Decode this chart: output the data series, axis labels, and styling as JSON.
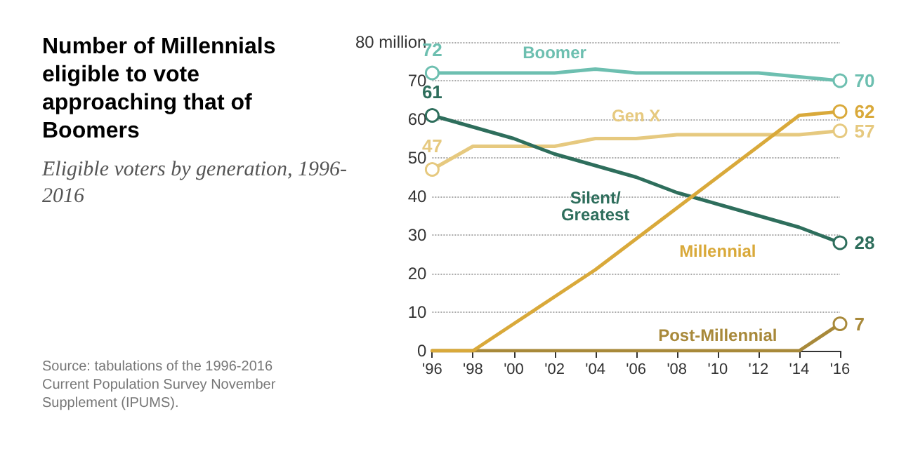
{
  "chart_data": {
    "type": "line",
    "title": "Number of Millennials eligible to vote approaching that of Boomers",
    "subtitle": "Eligible voters by generation, 1996-2016",
    "annotations": [
      "Source: tabulations of the 1996-2016 Current Population Survey November Supplement (IPUMS)."
    ],
    "categories": [
      "'96",
      "'98",
      "'00",
      "'02",
      "'04",
      "'06",
      "'08",
      "'10",
      "'12",
      "'14",
      "'16"
    ],
    "series": [
      {
        "name": "Boomer",
        "color": "#6dbfb0",
        "values": [
          72,
          72,
          72,
          72,
          73,
          72,
          72,
          72,
          72,
          71,
          70
        ],
        "value_labels": [
          "72",
          null,
          null,
          null,
          null,
          null,
          null,
          null,
          null,
          null,
          "70"
        ]
      },
      {
        "name": "Gen X",
        "color": "#e6c97f",
        "values": [
          47,
          53,
          53,
          53,
          55,
          55,
          56,
          56,
          56,
          56,
          57
        ],
        "value_labels": [
          "47",
          null,
          null,
          null,
          null,
          null,
          null,
          null,
          null,
          null,
          "57"
        ]
      },
      {
        "name": "Silent/Greatest",
        "color": "#2e6e5c",
        "values": [
          61,
          58,
          55,
          51,
          48,
          45,
          41,
          38,
          35,
          32,
          28
        ],
        "value_labels": [
          "61",
          null,
          null,
          null,
          null,
          null,
          null,
          null,
          null,
          null,
          "28"
        ]
      },
      {
        "name": "Post-Millennial",
        "color": "#a8893a",
        "values": [
          0,
          0,
          0,
          0,
          0,
          0,
          0,
          0,
          0,
          0,
          7
        ],
        "value_labels": [
          null,
          null,
          null,
          null,
          null,
          null,
          null,
          null,
          null,
          null,
          "7"
        ]
      },
      {
        "name": "Millennial",
        "color": "#d9a93a",
        "values": [
          0,
          0,
          7,
          14,
          21,
          29,
          37,
          45,
          53,
          61,
          62
        ],
        "value_labels": [
          null,
          null,
          null,
          null,
          null,
          null,
          null,
          null,
          null,
          null,
          "62"
        ]
      }
    ],
    "ylim": [
      0,
      80
    ],
    "yticks": [
      0,
      10,
      20,
      30,
      40,
      50,
      60,
      70,
      {
        "value": 80,
        "label": "80 million"
      }
    ],
    "grid": "y",
    "legend": false,
    "line_style": "solid"
  }
}
